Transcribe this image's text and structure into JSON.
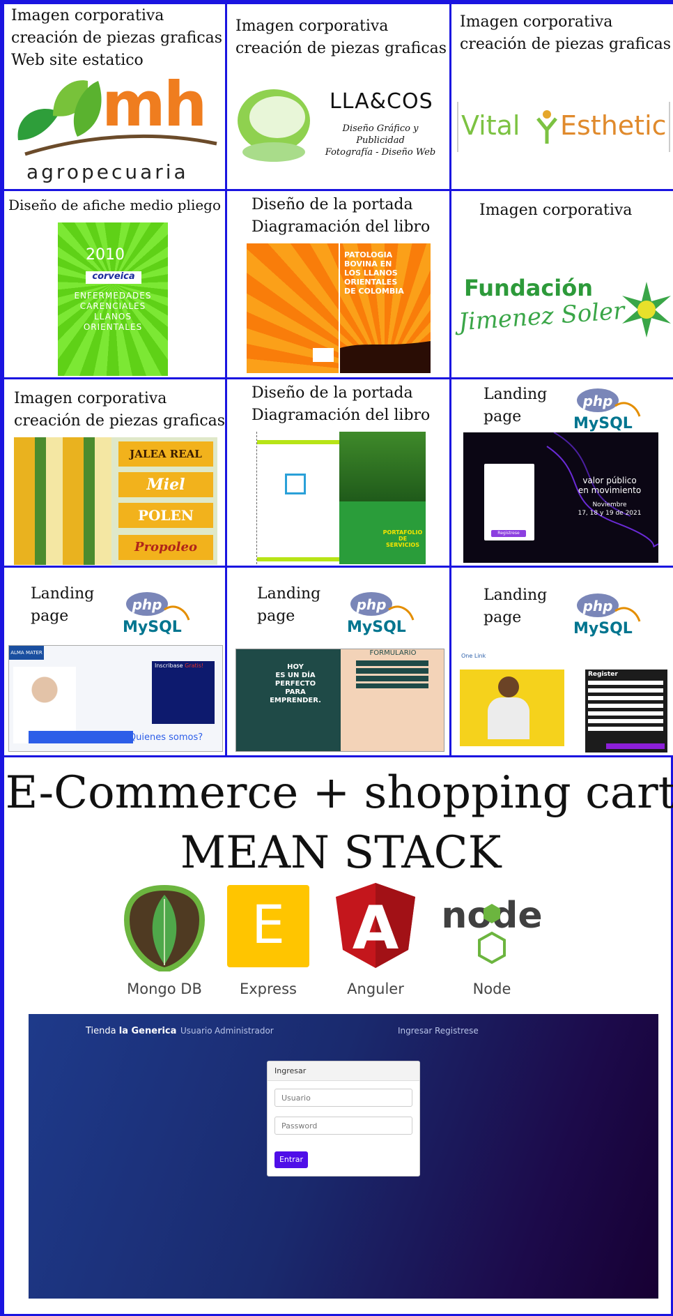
{
  "grid": {
    "cells": [
      {
        "caption": [
          "Imagen corporativa",
          "creación de piezas graficas",
          "Web site estatico"
        ],
        "logo_main": "mh",
        "logo_sub": "agropecuaria"
      },
      {
        "caption": [
          "Imagen corporativa",
          "creación de piezas graficas"
        ],
        "logo_main": "LLA&COS",
        "logo_sub": [
          "Diseño Gráfico y Publicidad",
          "Fotografía - Diseño Web"
        ]
      },
      {
        "caption": [
          "Imagen corporativa",
          "creación de piezas graficas"
        ],
        "logo_main": [
          "Vital",
          "Esthetic"
        ]
      },
      {
        "caption": [
          "Diseño de afiche medio pliego"
        ],
        "poster_year": "2010",
        "poster_brand": "corveica",
        "poster_text": [
          "ENFERMEDADES",
          "CARENCIALES",
          "LLANOS",
          "ORIENTALES"
        ]
      },
      {
        "caption": [
          "Diseño de la portada",
          "Diagramación del libro"
        ],
        "book_title": [
          "PATOLOGIA BOVINA EN",
          "LOS LLANOS ORIENTALES",
          "DE COLOMBIA"
        ]
      },
      {
        "caption": [
          "Imagen corporativa"
        ],
        "logo_main": "Fundación",
        "logo_script": "Jimenez Soler"
      },
      {
        "caption": [
          "Imagen corporativa",
          "creación de piezas graficas"
        ],
        "labels": [
          "JALEA REAL",
          "Miel",
          "POLEN",
          "Propoleo"
        ]
      },
      {
        "caption": [
          "Diseño de la portada",
          "Diagramación del libro"
        ],
        "brochure_text": "PORTAFOLIO DE SERVICIOS"
      },
      {
        "caption": [
          "Landing",
          "page"
        ],
        "landing_headline": [
          "valor público",
          "en movimiento"
        ],
        "landing_date": [
          "Noviembre",
          "17, 18 y 19 de 2021"
        ],
        "landing_button": "Registrese"
      },
      {
        "caption": [
          "Landing",
          "page"
        ],
        "landing_brand": "ALMA MATER",
        "landing_cta": [
          "Inscribase",
          "Gratis!"
        ],
        "landing_link": "¿Quienes somos?"
      },
      {
        "caption": [
          "Landing",
          "page"
        ],
        "landing_title": "FORMULARIO",
        "landing_hero": [
          "HOY",
          "ES UN DÍA",
          "PERFECTO",
          "PARA",
          "EMPRENDER."
        ]
      },
      {
        "caption": [
          "Landing",
          "page"
        ],
        "landing_brand": "One Link",
        "landing_form_title": "Register"
      }
    ],
    "tech_logo_php": "php",
    "tech_logo_mysql": "MySQL"
  },
  "mean": {
    "title_line1": "E-Commerce + shopping cart",
    "title_line2": "MEAN STACK",
    "techs": [
      {
        "label": "Mongo DB",
        "icon": "mongodb-leaf-icon"
      },
      {
        "label": "Express",
        "icon": "express-e-icon",
        "glyph": "E"
      },
      {
        "label": "Anguler",
        "icon": "angular-shield-icon",
        "glyph": "A"
      },
      {
        "label": "Node",
        "icon": "nodejs-icon",
        "glyph": "node"
      }
    ]
  },
  "app": {
    "brand_prefix": "Tienda",
    "brand_name": "la Generica",
    "nav_left": [
      "Usuario",
      "Administrador"
    ],
    "nav_right": [
      "Ingresar",
      "Registrese"
    ],
    "login": {
      "header": "Ingresar",
      "username_placeholder": "Usuario",
      "password_placeholder": "Password",
      "submit_label": "Entrar"
    }
  },
  "colors": {
    "border": "#1a14e0",
    "accent": "#4f0ee8"
  }
}
